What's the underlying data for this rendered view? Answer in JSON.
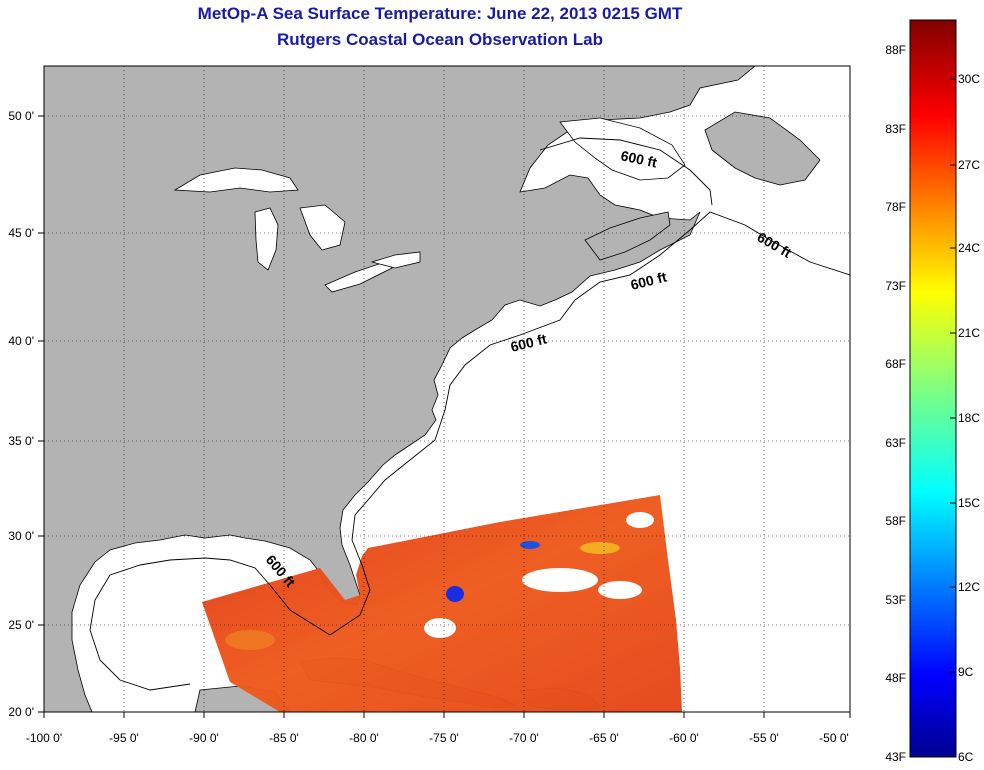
{
  "title": "MetOp-A Sea Surface Temperature:  June 22, 2013 0215 GMT",
  "subtitle": "Rutgers Coastal Ocean Observation Lab",
  "lon_ticks": [
    "-100 0'",
    "-95 0'",
    "-90 0'",
    "-85 0'",
    "-80 0'",
    "-75 0'",
    "-70 0'",
    "-65 0'",
    "-60 0'",
    "-55 0'",
    "-50 0'"
  ],
  "lat_ticks": [
    "50 0'",
    "45 0'",
    "40 0'",
    "35 0'",
    "30 0'",
    "25 0'",
    "20 0'"
  ],
  "isobath_labels": [
    "600 ft",
    "600 ft",
    "600 ft",
    "600 ft",
    "600 ft"
  ],
  "colorbar": {
    "fahrenheit": [
      "88F",
      "83F",
      "78F",
      "73F",
      "68F",
      "63F",
      "58F",
      "53F",
      "48F",
      "43F"
    ],
    "celsius": [
      "30C",
      "27C",
      "24C",
      "21C",
      "18C",
      "15C",
      "12C",
      "9C",
      "6C"
    ]
  },
  "colors": {
    "title": "#1a1aa8",
    "land": "#b3b3b3",
    "ocean": "#ffffff",
    "sst_warm": "#e83418"
  }
}
